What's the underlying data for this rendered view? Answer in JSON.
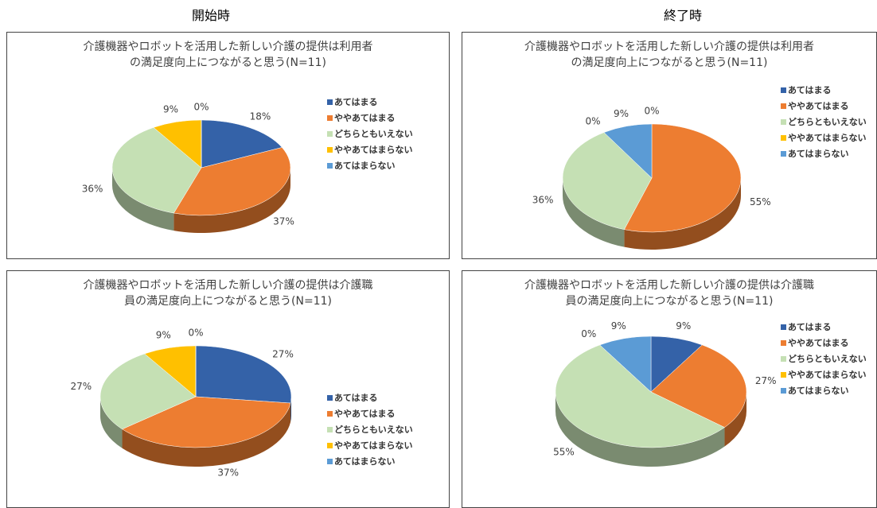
{
  "columns": [
    "開始時",
    "終了時"
  ],
  "chart_data": [
    {
      "type": "pie",
      "title": "介護機器やロボットを活用した新しい介護の提供は利用者の満足度向上につながると思う(N=11)",
      "categories": [
        "あてはまる",
        "ややあてはまる",
        "どちらともいえない",
        "ややあてはまらない",
        "あてはまらない"
      ],
      "values": [
        18,
        37,
        36,
        9,
        0
      ],
      "value_labels": [
        "18%",
        "37%",
        "36%",
        "9%",
        "0%"
      ],
      "colors": [
        "#3462a8",
        "#ed7d31",
        "#c5e0b4",
        "#ffc000",
        "#5b9bd5"
      ]
    },
    {
      "type": "pie",
      "title": "介護機器やロボットを活用した新しい介護の提供は利用者の満足度向上につながると思う(N=11)",
      "categories": [
        "あてはまる",
        "ややあてはまる",
        "どちらともいえない",
        "ややあてはまらない",
        "あてはまらない"
      ],
      "values": [
        0,
        55,
        36,
        0,
        9
      ],
      "value_labels": [
        "0%",
        "55%",
        "36%",
        "0%",
        "9%"
      ],
      "colors": [
        "#3462a8",
        "#ed7d31",
        "#c5e0b4",
        "#ffc000",
        "#5b9bd5"
      ]
    },
    {
      "type": "pie",
      "title": "介護機器やロボットを活用した新しい介護の提供は介護職員の満足度向上につながると思う(N=11)",
      "categories": [
        "あてはまる",
        "ややあてはまる",
        "どちらともいえない",
        "ややあてはまらない",
        "あてはまらない"
      ],
      "values": [
        27,
        37,
        27,
        9,
        0
      ],
      "value_labels": [
        "27%",
        "37%",
        "27%",
        "9%",
        "0%"
      ],
      "colors": [
        "#3462a8",
        "#ed7d31",
        "#c5e0b4",
        "#ffc000",
        "#5b9bd5"
      ]
    },
    {
      "type": "pie",
      "title": "介護機器やロボットを活用した新しい介護の提供は介護職員の満足度向上につながると思う(N=11)",
      "categories": [
        "あてはまる",
        "ややあてはまる",
        "どちらともいえない",
        "ややあてはまらない",
        "あてはまらない"
      ],
      "values": [
        9,
        27,
        55,
        0,
        9
      ],
      "value_labels": [
        "9%",
        "27%",
        "55%",
        "0%",
        "9%"
      ],
      "colors": [
        "#3462a8",
        "#ed7d31",
        "#c5e0b4",
        "#ffc000",
        "#5b9bd5"
      ]
    }
  ]
}
